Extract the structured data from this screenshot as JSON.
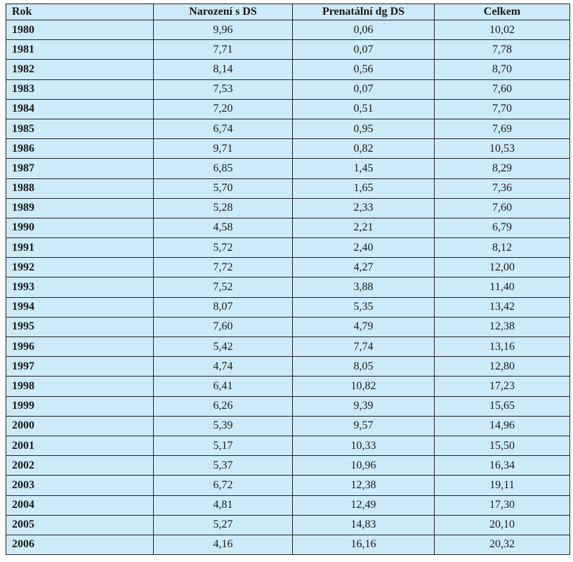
{
  "table": {
    "header": [
      "Rok",
      "Narození s DS",
      "Prenatální dg DS",
      "Celkem"
    ],
    "rows": [
      [
        "1980",
        "9,96",
        "0,06",
        "10,02"
      ],
      [
        "1981",
        "7,71",
        "0,07",
        "7,78"
      ],
      [
        "1982",
        "8,14",
        "0,56",
        "8,70"
      ],
      [
        "1983",
        "7,53",
        "0,07",
        "7,60"
      ],
      [
        "1984",
        "7,20",
        "0,51",
        "7,70"
      ],
      [
        "1985",
        "6,74",
        "0,95",
        "7,69"
      ],
      [
        "1986",
        "9,71",
        "0,82",
        "10,53"
      ],
      [
        "1987",
        "6,85",
        "1,45",
        "8,29"
      ],
      [
        "1988",
        "5,70",
        "1,65",
        "7,36"
      ],
      [
        "1989",
        "5,28",
        "2,33",
        "7,60"
      ],
      [
        "1990",
        "4,58",
        "2,21",
        "6,79"
      ],
      [
        "1991",
        "5,72",
        "2,40",
        "8,12"
      ],
      [
        "1992",
        "7,72",
        "4,27",
        "12,00"
      ],
      [
        "1993",
        "7,52",
        "3,88",
        "11,40"
      ],
      [
        "1994",
        "8,07",
        "5,35",
        "13,42"
      ],
      [
        "1995",
        "7,60",
        "4,79",
        "12,38"
      ],
      [
        "1996",
        "5,42",
        "7,74",
        "13,16"
      ],
      [
        "1997",
        "4,74",
        "8,05",
        "12,80"
      ],
      [
        "1998",
        "6,41",
        "10,82",
        "17,23"
      ],
      [
        "1999",
        "6,26",
        "9,39",
        "15,65"
      ],
      [
        "2000",
        "5,39",
        "9,57",
        "14,96"
      ],
      [
        "2001",
        "5,17",
        "10,33",
        "15,50"
      ],
      [
        "2002",
        "5,37",
        "10,96",
        "16,34"
      ],
      [
        "2003",
        "6,72",
        "12,38",
        "19,11"
      ],
      [
        "2004",
        "4,81",
        "12,49",
        "17,30"
      ],
      [
        "2005",
        "5,27",
        "14,83",
        "20,10"
      ],
      [
        "2006",
        "4,16",
        "16,16",
        "20,32"
      ]
    ]
  }
}
